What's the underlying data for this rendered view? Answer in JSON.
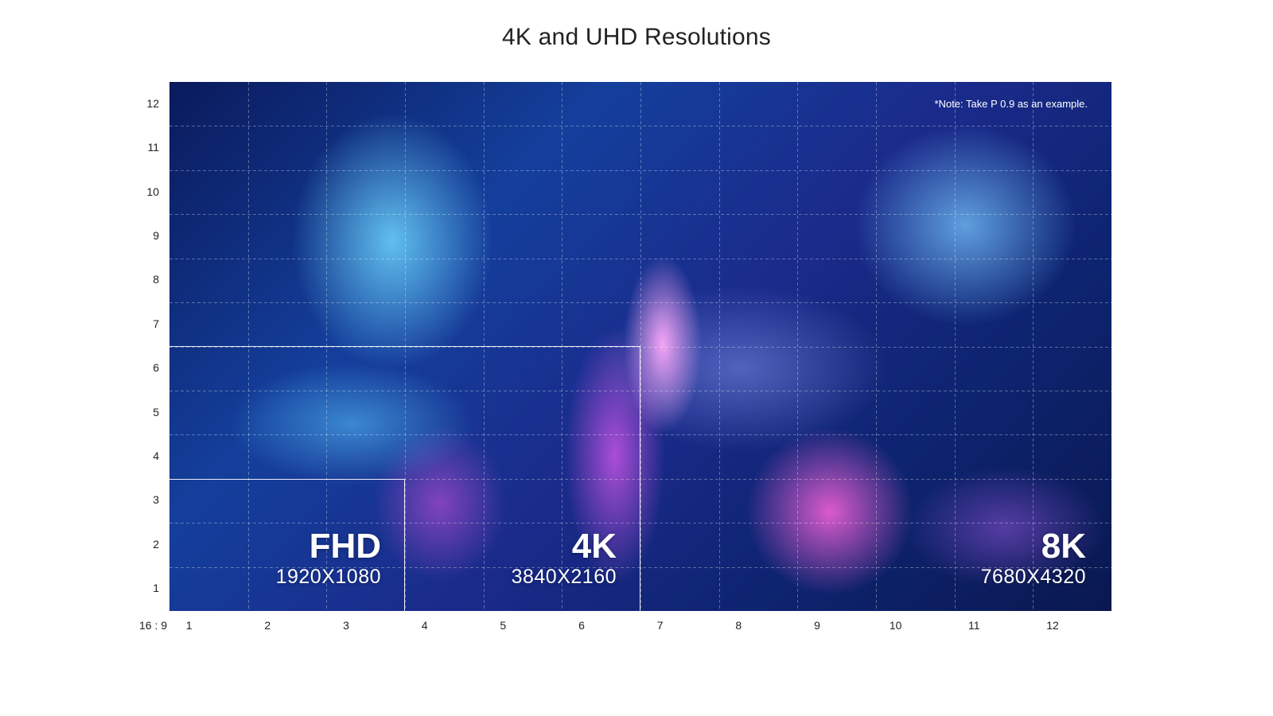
{
  "title": "4K and UHD Resolutions",
  "note": "*Note: Take  P 0.9 as an example.",
  "aspect_ratio_label": "16 : 9",
  "y_axis_labels": [
    "12",
    "11",
    "10",
    "9",
    "8",
    "7",
    "6",
    "5",
    "4",
    "3",
    "2",
    "1"
  ],
  "x_axis_labels": [
    "1",
    "2",
    "3",
    "4",
    "5",
    "6",
    "7",
    "8",
    "9",
    "10",
    "11",
    "12"
  ],
  "resolutions": [
    {
      "name": "FHD",
      "dims": "1920X1080"
    },
    {
      "name": "4K",
      "dims": "3840X2160"
    },
    {
      "name": "8K",
      "dims": "7680X4320"
    }
  ],
  "colors": {
    "panel_dark": "#0a1a5c",
    "panel_blue": "#143f9c",
    "accent_cyan": "#6ed7ff",
    "accent_magenta": "#ff64dc"
  }
}
